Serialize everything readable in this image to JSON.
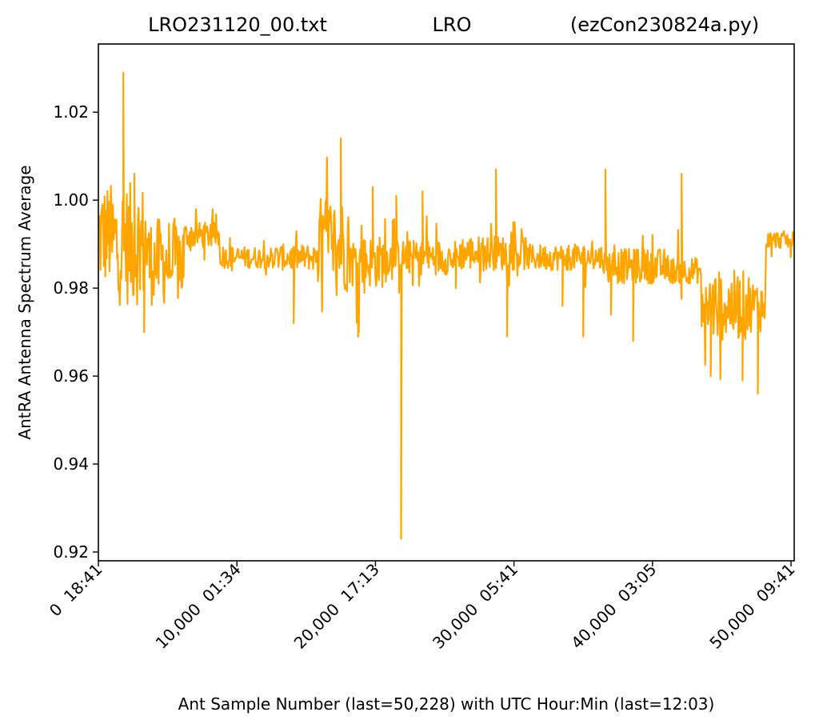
{
  "chart_data": {
    "type": "line",
    "title_left": "LRO231120_00.txt",
    "title_center": "LRO",
    "title_right": "(ezCon230824a.py)",
    "xlabel": "Ant Sample Number (last=50,228) with UTC Hour:Min (last=12:03)",
    "ylabel": "AntRA Antenna Spectrum Average",
    "xlim": [
      0,
      50228
    ],
    "ylim": [
      0.918,
      1.0355
    ],
    "x_ticks": [
      {
        "value": 0,
        "label": "0  18:41"
      },
      {
        "value": 10000,
        "label": "10,000  01:34"
      },
      {
        "value": 20000,
        "label": "20,000  17:13"
      },
      {
        "value": 30000,
        "label": "30,000  05:41"
      },
      {
        "value": 40000,
        "label": "40,000  03:05"
      },
      {
        "value": 50000,
        "label": "50,000  09:41"
      }
    ],
    "y_ticks": [
      {
        "value": 0.92,
        "label": "0.92"
      },
      {
        "value": 0.94,
        "label": "0.94"
      },
      {
        "value": 0.96,
        "label": "0.96"
      },
      {
        "value": 0.98,
        "label": "0.98"
      },
      {
        "value": 1.0,
        "label": "1.00"
      },
      {
        "value": 1.02,
        "label": "1.02"
      }
    ],
    "grid": false,
    "series": [
      {
        "color": "#ffa500",
        "segments": [
          {
            "x0": 0,
            "x1": 900,
            "center": 0.992,
            "amp": 0.012,
            "min": 0.976,
            "max": 1.014
          },
          {
            "x0": 900,
            "x1": 3600,
            "center": 0.99,
            "amp": 0.014,
            "min": 0.97,
            "max": 1.012
          },
          {
            "x0": 3600,
            "x1": 6200,
            "center": 0.986,
            "amp": 0.01,
            "min": 0.97,
            "max": 1.007
          },
          {
            "x0": 6200,
            "x1": 8800,
            "center": 0.992,
            "amp": 0.003,
            "min": 0.984,
            "max": 0.998
          },
          {
            "x0": 8800,
            "x1": 12500,
            "center": 0.987,
            "amp": 0.0025,
            "min": 0.982,
            "max": 0.993
          },
          {
            "x0": 12500,
            "x1": 15800,
            "center": 0.987,
            "amp": 0.003,
            "min": 0.98,
            "max": 0.993
          },
          {
            "x0": 15800,
            "x1": 18100,
            "center": 0.99,
            "amp": 0.011,
            "min": 0.972,
            "max": 1.014
          },
          {
            "x0": 18100,
            "x1": 20800,
            "center": 0.986,
            "amp": 0.006,
            "min": 0.968,
            "max": 1.003
          },
          {
            "x0": 20800,
            "x1": 26000,
            "center": 0.987,
            "amp": 0.004,
            "min": 0.979,
            "max": 1.001
          },
          {
            "x0": 26000,
            "x1": 31000,
            "center": 0.988,
            "amp": 0.004,
            "min": 0.979,
            "max": 0.995
          },
          {
            "x0": 31000,
            "x1": 36500,
            "center": 0.987,
            "amp": 0.003,
            "min": 0.98,
            "max": 0.994
          },
          {
            "x0": 36500,
            "x1": 41000,
            "center": 0.985,
            "amp": 0.004,
            "min": 0.977,
            "max": 0.996
          },
          {
            "x0": 41000,
            "x1": 43500,
            "center": 0.984,
            "amp": 0.003,
            "min": 0.976,
            "max": 0.995
          },
          {
            "x0": 43500,
            "x1": 47000,
            "center": 0.976,
            "amp": 0.008,
            "min": 0.958,
            "max": 0.993
          },
          {
            "x0": 47000,
            "x1": 48200,
            "center": 0.976,
            "amp": 0.006,
            "min": 0.956,
            "max": 0.988
          },
          {
            "x0": 48200,
            "x1": 50228,
            "center": 0.991,
            "amp": 0.002,
            "min": 0.987,
            "max": 0.998
          }
        ],
        "spikes": [
          {
            "x": 1800,
            "y": 1.029
          },
          {
            "x": 2600,
            "y": 1.006
          },
          {
            "x": 3300,
            "y": 0.97
          },
          {
            "x": 14100,
            "y": 0.972
          },
          {
            "x": 17500,
            "y": 1.014
          },
          {
            "x": 18800,
            "y": 0.97
          },
          {
            "x": 19800,
            "y": 1.003
          },
          {
            "x": 21500,
            "y": 1.001
          },
          {
            "x": 21700,
            "y": 0.979
          },
          {
            "x": 21850,
            "y": 0.923
          },
          {
            "x": 23400,
            "y": 1.002
          },
          {
            "x": 25800,
            "y": 0.98
          },
          {
            "x": 28700,
            "y": 1.007
          },
          {
            "x": 29500,
            "y": 0.969
          },
          {
            "x": 33500,
            "y": 0.976
          },
          {
            "x": 35000,
            "y": 0.969
          },
          {
            "x": 36600,
            "y": 1.007
          },
          {
            "x": 37000,
            "y": 0.974
          },
          {
            "x": 38600,
            "y": 0.968
          },
          {
            "x": 42100,
            "y": 1.006
          },
          {
            "x": 44200,
            "y": 0.96
          },
          {
            "x": 46500,
            "y": 0.959
          },
          {
            "x": 47600,
            "y": 0.956
          }
        ]
      }
    ]
  }
}
